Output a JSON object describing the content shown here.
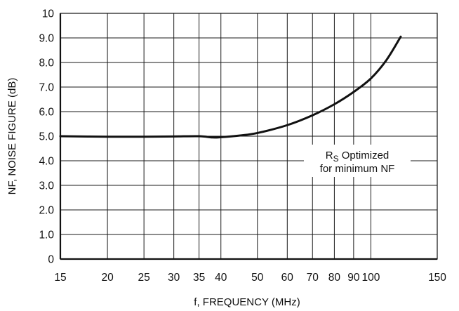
{
  "chart_data": {
    "type": "line",
    "xlabel": "f, FREQUENCY (MHz)",
    "ylabel": "NF, NOISE FIGURE (dB)",
    "x_scale": "log",
    "xlim": [
      15,
      150
    ],
    "ylim": [
      0,
      10
    ],
    "grid": true,
    "x_ticks": [
      15,
      20,
      25,
      30,
      35,
      40,
      50,
      60,
      70,
      80,
      90,
      100,
      150
    ],
    "x_tick_labels": [
      "15",
      "20",
      "25",
      "30",
      "35",
      "40",
      "50",
      "60",
      "70",
      "80",
      "90",
      "100",
      "150"
    ],
    "y_ticks": [
      0,
      1,
      2,
      3,
      4,
      5,
      6,
      7,
      8,
      9,
      10
    ],
    "y_tick_labels": [
      "0",
      "1.0",
      "2.0",
      "3.0",
      "4.0",
      "5.0",
      "6.0",
      "7.0",
      "8.0",
      "9.0",
      "10"
    ],
    "annotation": {
      "line1_main": "R",
      "line1_sub": "S",
      "line1_rest": " Optimized",
      "line2": "for minimum NF"
    },
    "series": [
      {
        "x": [
          15,
          20,
          25,
          30,
          35,
          38,
          40,
          45,
          50,
          60,
          70,
          80,
          90,
          100,
          110,
          120
        ],
        "y": [
          5.0,
          4.98,
          4.98,
          4.99,
          5.0,
          4.95,
          4.96,
          5.03,
          5.13,
          5.45,
          5.85,
          6.3,
          6.8,
          7.35,
          8.1,
          9.05
        ]
      }
    ]
  }
}
